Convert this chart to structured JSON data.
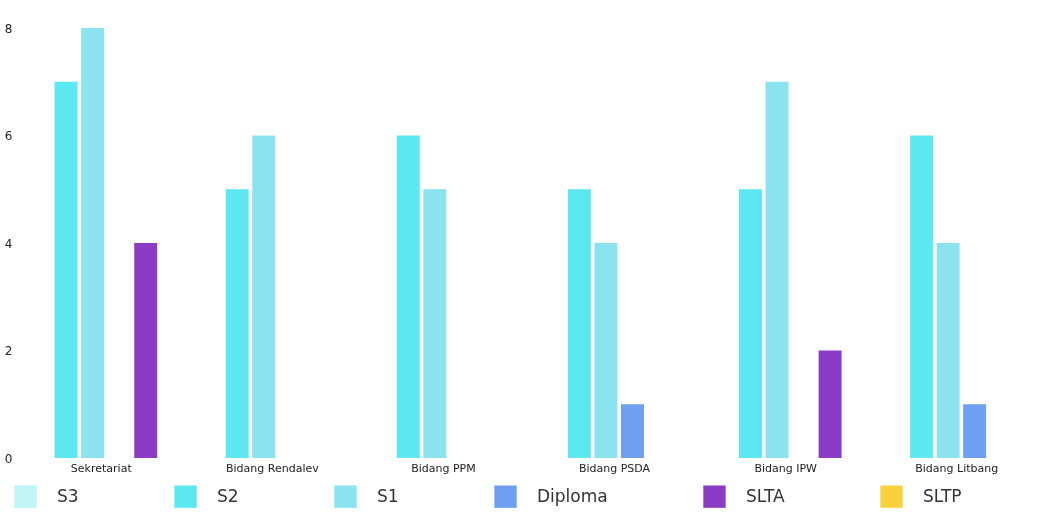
{
  "chart_data": {
    "type": "bar",
    "categories": [
      "Sekretariat",
      "Bidang Rendalev",
      "Bidang PPM",
      "Bidang PSDA",
      "Bidang IPW",
      "Bidang Litbang"
    ],
    "series": [
      {
        "name": "S3",
        "color": "#bff5f7",
        "values": [
          0,
          0,
          0,
          0,
          0,
          0
        ]
      },
      {
        "name": "S2",
        "color": "#5ce8f0",
        "values": [
          7,
          5,
          6,
          5,
          5,
          6
        ]
      },
      {
        "name": "S1",
        "color": "#8be3f0",
        "values": [
          8,
          6,
          5,
          4,
          7,
          4
        ]
      },
      {
        "name": "Diploma",
        "color": "#6f9ff0",
        "values": [
          0,
          0,
          0,
          1,
          0,
          1
        ]
      },
      {
        "name": "SLTA",
        "color": "#8a3cc6",
        "values": [
          4,
          0,
          0,
          0,
          2,
          0
        ]
      },
      {
        "name": "SLTP",
        "color": "#f7d23c",
        "values": [
          0,
          0,
          0,
          0,
          0,
          0
        ]
      }
    ],
    "ylim": [
      0,
      8
    ],
    "yticks": [
      0,
      2,
      4,
      6,
      8
    ],
    "grid": false,
    "legend": "bottom"
  }
}
